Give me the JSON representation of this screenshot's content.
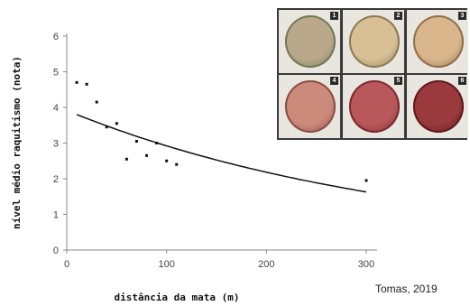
{
  "chart_data": {
    "type": "scatter",
    "xlabel": "distância da mata (m)",
    "ylabel": "nível médio raquitismo (nota)",
    "xlim": [
      0,
      300
    ],
    "ylim": [
      0,
      6
    ],
    "xticks": [
      0,
      100,
      200,
      300
    ],
    "yticks": [
      0,
      1,
      2,
      3,
      4,
      5,
      6
    ],
    "x_tick_labels": [
      "0",
      "100",
      "200",
      "300"
    ],
    "y_tick_labels": [
      "0",
      "1",
      "2",
      "3",
      "4",
      "5",
      "6"
    ],
    "points": [
      {
        "x": 10,
        "y": 4.7
      },
      {
        "x": 20,
        "y": 4.65
      },
      {
        "x": 30,
        "y": 4.15
      },
      {
        "x": 40,
        "y": 3.45
      },
      {
        "x": 50,
        "y": 3.55
      },
      {
        "x": 60,
        "y": 2.55
      },
      {
        "x": 70,
        "y": 3.05
      },
      {
        "x": 80,
        "y": 2.65
      },
      {
        "x": 90,
        "y": 3.0
      },
      {
        "x": 100,
        "y": 2.5
      },
      {
        "x": 110,
        "y": 2.4
      },
      {
        "x": 300,
        "y": 1.95
      }
    ],
    "trendline": {
      "type": "exponential",
      "x_range": [
        10,
        300
      ],
      "y_start": 3.8,
      "y_end": 1.63
    },
    "grid": false
  },
  "credit": "Tomas, 2019",
  "photos": [
    {
      "number": "1",
      "color": "#b9a98a",
      "rim": "#6f7a55"
    },
    {
      "number": "2",
      "color": "#d8bf94",
      "rim": "#8a7a55"
    },
    {
      "number": "3",
      "color": "#d9b68c",
      "rim": "#8e6f4a"
    },
    {
      "number": "4",
      "color": "#cc8a7a",
      "rim": "#8a4e45"
    },
    {
      "number": "5",
      "color": "#b8585a",
      "rim": "#7a2b30"
    },
    {
      "number": "6",
      "color": "#9a3a3c",
      "rim": "#5e1a1e"
    }
  ]
}
